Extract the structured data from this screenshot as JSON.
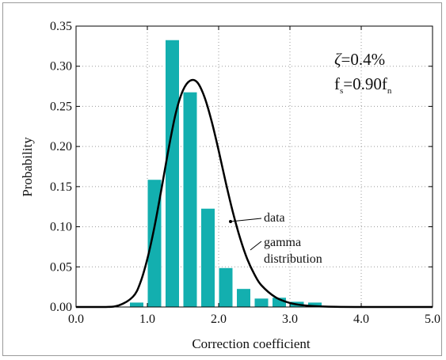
{
  "chart_data": {
    "type": "bar",
    "xlabel": "Correction coefficient",
    "ylabel": "Probability",
    "xlim": [
      0,
      5
    ],
    "ylim": [
      0,
      0.35
    ],
    "grid": true,
    "x_ticks": [
      "0.0",
      "1.0",
      "2.0",
      "3.0",
      "4.0",
      "5.0"
    ],
    "y_ticks": [
      "0.00",
      "0.05",
      "0.10",
      "0.15",
      "0.20",
      "0.25",
      "0.30",
      "0.35"
    ],
    "bar_width": 0.2,
    "bar_color": "#13AFAF",
    "series": [
      {
        "name": "data",
        "type": "bar",
        "x": [
          0.85,
          1.1,
          1.35,
          1.6,
          1.85,
          2.1,
          2.35,
          2.6,
          2.85,
          3.1,
          3.35,
          3.6
        ],
        "values": [
          0.006,
          0.159,
          0.333,
          0.268,
          0.123,
          0.049,
          0.023,
          0.011,
          0.012,
          0.007,
          0.006,
          0.0
        ]
      },
      {
        "name": "gamma distribution",
        "type": "line",
        "x": [
          0.0,
          0.4,
          0.6,
          0.8,
          0.9,
          1.0,
          1.1,
          1.2,
          1.3,
          1.4,
          1.5,
          1.6,
          1.7,
          1.8,
          1.9,
          2.0,
          2.1,
          2.2,
          2.3,
          2.4,
          2.5,
          2.6,
          2.8,
          3.0,
          3.2,
          3.5,
          4.0,
          5.0
        ],
        "values": [
          0.0,
          0.0,
          0.002,
          0.013,
          0.03,
          0.06,
          0.1,
          0.148,
          0.198,
          0.242,
          0.27,
          0.282,
          0.28,
          0.262,
          0.232,
          0.195,
          0.155,
          0.118,
          0.086,
          0.06,
          0.041,
          0.027,
          0.012,
          0.005,
          0.002,
          0.0005,
          0.0,
          0.0
        ]
      }
    ],
    "annotations": {
      "line1_symbol": "ζ",
      "line1_rest": "=0.4%",
      "line2_f": "f",
      "line2_sub1": "s",
      "line2_mid": "=0.90f",
      "line2_sub2": "n",
      "data_label": "data",
      "gamma_label_1": "gamma",
      "gamma_label_2": "distribution"
    }
  }
}
